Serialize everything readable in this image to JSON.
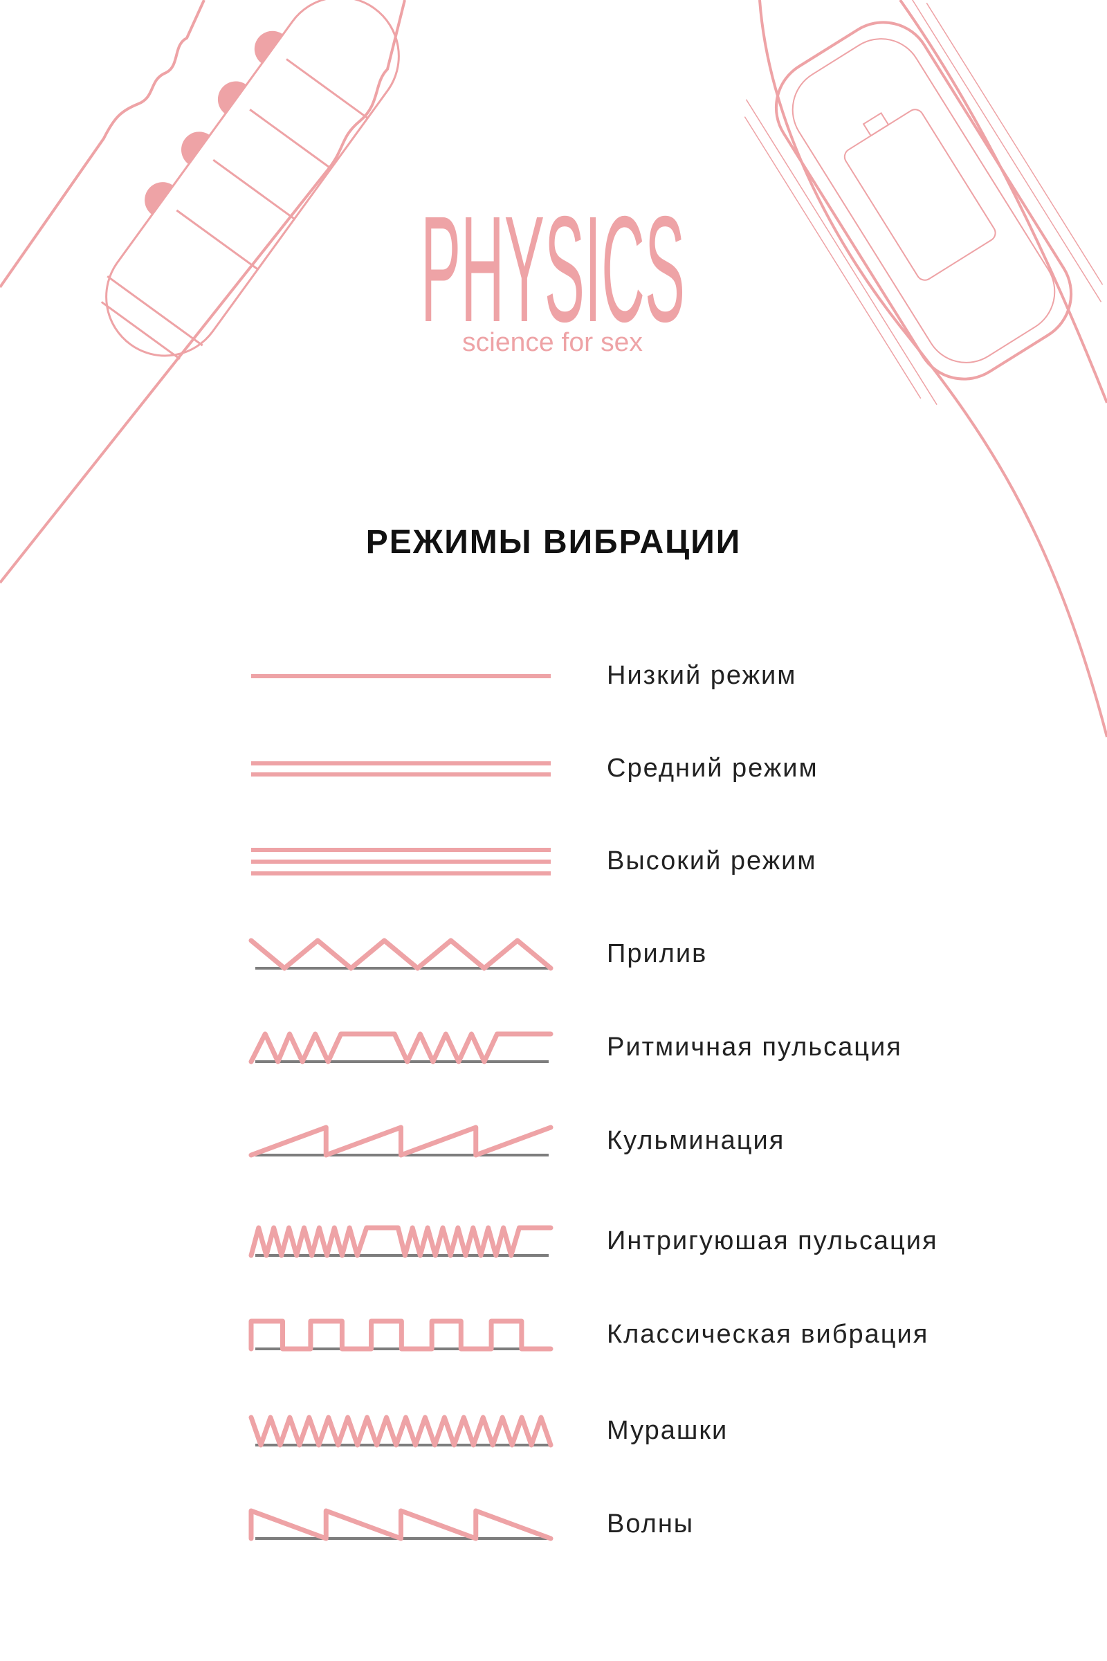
{
  "brand": {
    "logo_text": "PHYSICS",
    "tagline": "science for sex",
    "accent_color": "#eea3a6"
  },
  "title": "РЕЖИМЫ ВИБРАЦИИ",
  "colors": {
    "wave": "#eea3a6",
    "baseline": "#7d7d7d",
    "text": "#222222"
  },
  "modes": [
    {
      "label": "Низкий режим",
      "pattern": "one-line"
    },
    {
      "label": "Средний режим",
      "pattern": "two-lines"
    },
    {
      "label": "Высокий режим",
      "pattern": "three-lines"
    },
    {
      "label": "Прилив",
      "pattern": "triangle"
    },
    {
      "label": "Ритмичная пульсация",
      "pattern": "burst-3"
    },
    {
      "label": "Кульминация",
      "pattern": "sawtooth-up"
    },
    {
      "label": "Интригуюшая пульсация",
      "pattern": "burst-7"
    },
    {
      "label": "Классическая вибрация",
      "pattern": "square"
    },
    {
      "label": "Мурашки",
      "pattern": "dense-zigzag"
    },
    {
      "label": "Волны",
      "pattern": "sawtooth-down"
    }
  ]
}
